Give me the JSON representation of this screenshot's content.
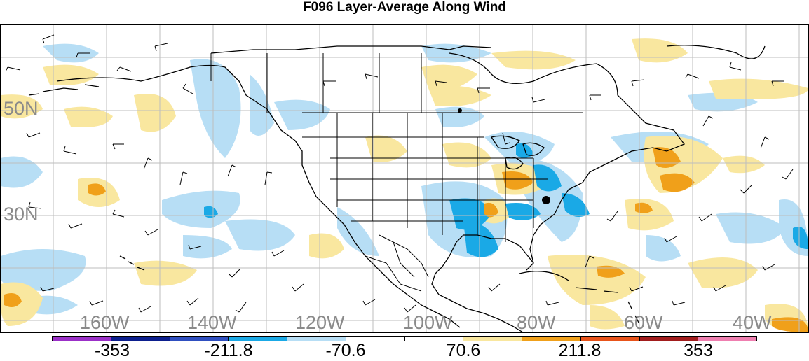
{
  "title": "F096 Layer-Average Along Wind",
  "lat_labels": [
    "50N",
    "30N"
  ],
  "lon_labels": [
    "160W",
    "140W",
    "120W",
    "100W",
    "80W",
    "60W",
    "40W"
  ],
  "colorbar": {
    "colors": [
      "#9b30c8",
      "#0c1f8e",
      "#2f4fc0",
      "#1aa9e6",
      "#b7def5",
      "#ffffff",
      "#ffffff",
      "#f9e79f",
      "#f0a01a",
      "#e8531a",
      "#a21d1d",
      "#ef7fb0"
    ],
    "labels": [
      "-353",
      "-211.8",
      "-70.6",
      "70.6",
      "211.8",
      "353"
    ]
  },
  "shading_colors": {
    "light_blue": "#b7def5",
    "blue": "#1aa9e6",
    "light_yellow": "#f9e79f",
    "orange": "#f0a01a"
  }
}
